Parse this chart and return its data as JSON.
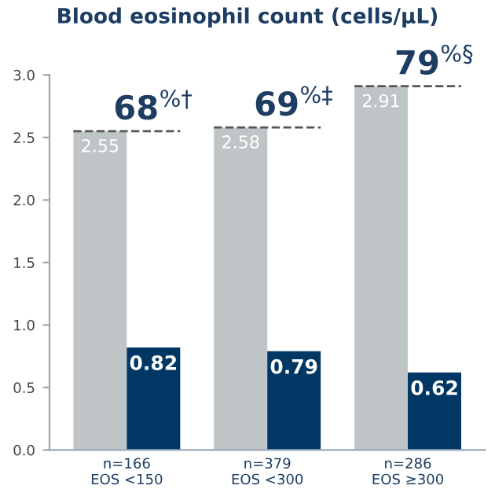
{
  "chart_data": {
    "type": "bar",
    "title": "Blood eosinophil count (cells/µL)",
    "categories": [
      "n=166\nEOS <150",
      "n=379\nEOS <300",
      "n=286\nEOS ≥300"
    ],
    "series": [
      {
        "color": "#bfc5c6",
        "values": [
          2.55,
          2.58,
          2.91
        ]
      },
      {
        "color": "#003764",
        "values": [
          0.82,
          0.79,
          0.62
        ]
      }
    ],
    "data_labels": true,
    "ylim": [
      0,
      3.0
    ],
    "yticks": [
      {
        "value": 0,
        "label": "0.0"
      },
      {
        "value": 0.5,
        "label": "0.5"
      },
      {
        "value": 1,
        "label": "1.0"
      },
      {
        "value": 1.5,
        "label": "1.5"
      },
      {
        "value": 2,
        "label": "2.0"
      },
      {
        "value": 2.5,
        "label": "2.5"
      },
      {
        "value": 3,
        "label": "3.0"
      }
    ],
    "ref_lines": [
      {
        "axis": "y",
        "value": 2.55,
        "color": "#555555",
        "line_style": "dashed"
      },
      {
        "axis": "y",
        "value": 2.58,
        "color": "#555555",
        "line_style": "dashed"
      },
      {
        "axis": "y",
        "value": 2.91,
        "color": "#555555",
        "line_style": "dashed"
      }
    ],
    "annotations": [
      "68$^{%†}$",
      "69$^{%‡}$",
      "79$^{%§}$"
    ],
    "grid": false,
    "legend": false
  }
}
